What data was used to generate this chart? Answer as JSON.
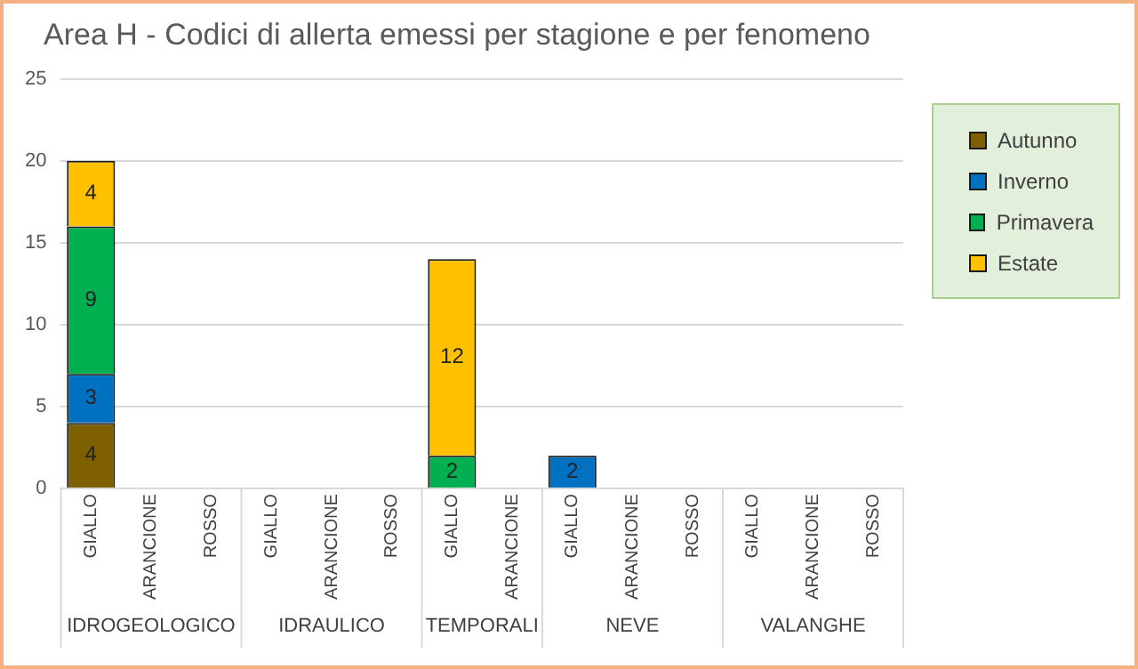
{
  "chart_data": {
    "type": "bar",
    "title": "Area H - Codici di allerta emessi per stagione e per fenomeno",
    "categories": [
      "GIALLO",
      "ARANCIONE",
      "ROSSO",
      "GIALLO",
      "ARANCIONE",
      "ROSSO",
      "GIALLO",
      "ARANCIONE",
      "GIALLO",
      "ARANCIONE",
      "ROSSO",
      "GIALLO",
      "ARANCIONE",
      "ROSSO"
    ],
    "series": [
      {
        "name": "Autunno",
        "color": "#7f6000",
        "values": [
          4,
          null,
          null,
          null,
          null,
          null,
          null,
          null,
          null,
          null,
          null,
          null,
          null,
          null
        ]
      },
      {
        "name": "Inverno",
        "color": "#0070c0",
        "values": [
          3,
          null,
          null,
          null,
          null,
          null,
          null,
          null,
          2,
          null,
          null,
          null,
          null,
          null
        ]
      },
      {
        "name": "Primavera",
        "color": "#00b050",
        "values": [
          9,
          null,
          null,
          null,
          null,
          null,
          2,
          null,
          null,
          null,
          null,
          null,
          null,
          null
        ]
      },
      {
        "name": "Estate",
        "color": "#ffc000",
        "values": [
          4,
          null,
          null,
          null,
          null,
          null,
          12,
          null,
          null,
          null,
          null,
          null,
          null,
          null
        ]
      }
    ],
    "annotations": [
      "IDROGEOLOGICO",
      "IDRAULICO",
      "TEMPORALI",
      "NEVE",
      "VALANGHE"
    ],
    "stacked": true,
    "data_labels": true,
    "ylim": [
      0,
      25
    ],
    "yticks": [
      0,
      5,
      10,
      15,
      20,
      25
    ],
    "grid": "y",
    "legend": "right"
  }
}
